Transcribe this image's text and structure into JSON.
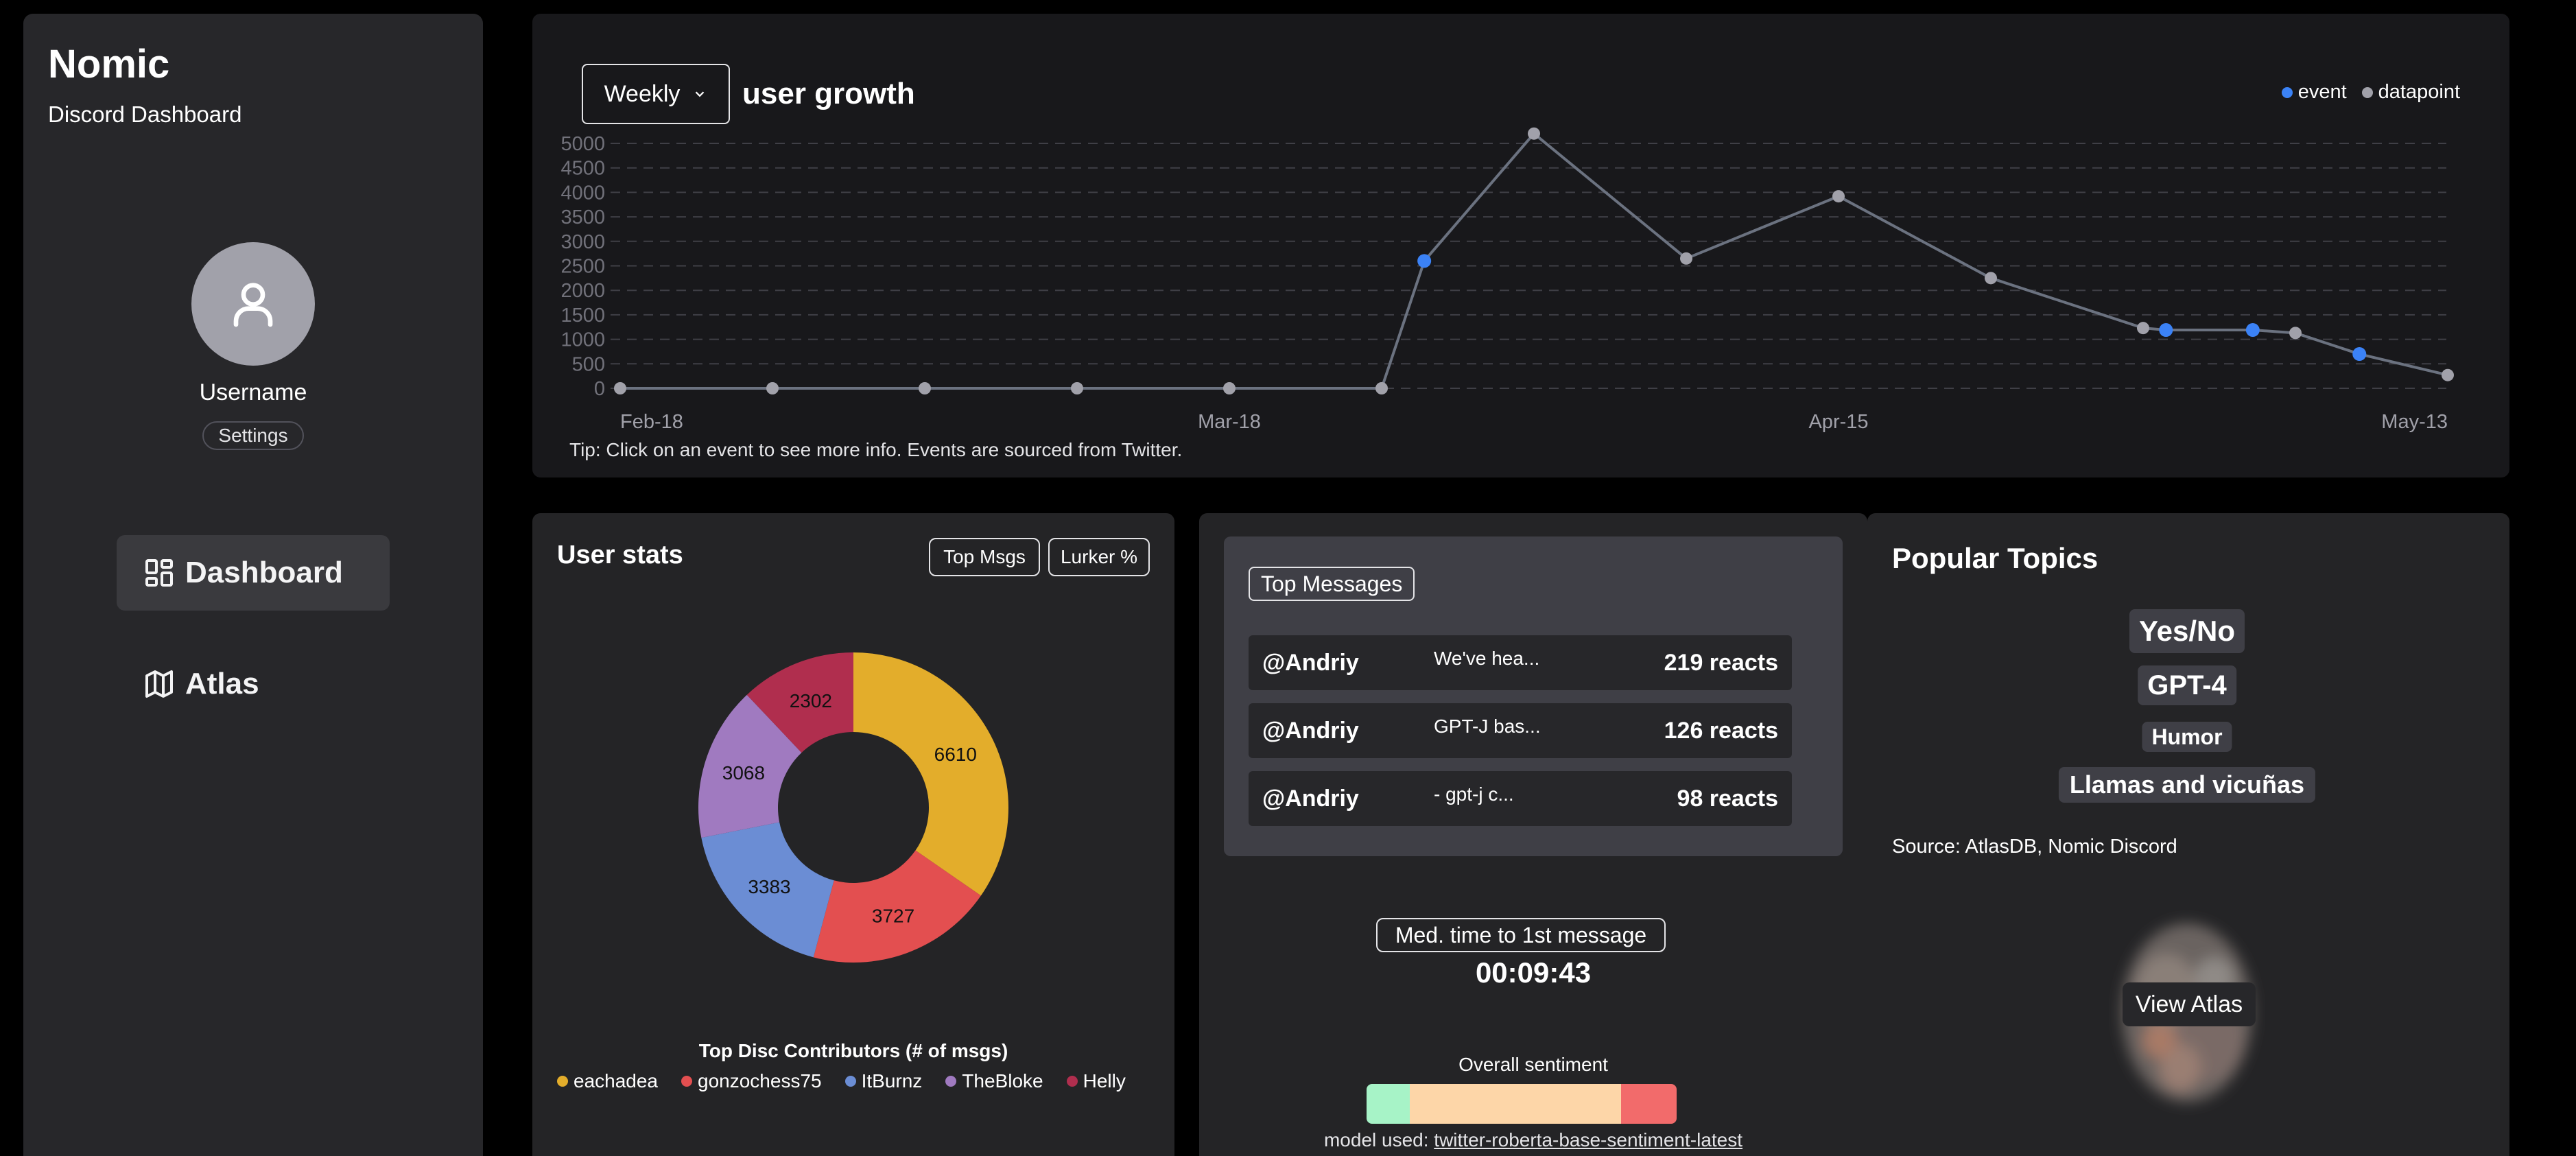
{
  "sidebar": {
    "brand_title": "Nomic",
    "brand_subtitle": "Discord Dashboard",
    "username": "Username",
    "settings_label": "Settings",
    "nav": {
      "dashboard": "Dashboard",
      "atlas": "Atlas"
    }
  },
  "growth": {
    "period": "Weekly",
    "title": "user growth",
    "legend": {
      "event": "event",
      "datapoint": "datapoint"
    },
    "tip": "Tip: Click on an event to see more info. Events are sourced from Twitter."
  },
  "chart_data": {
    "type": "line",
    "title": "user growth",
    "xlabel": "",
    "ylabel": "",
    "ylim": [
      0,
      5000
    ],
    "y_ticks": [
      0,
      500,
      1000,
      1500,
      2000,
      2500,
      3000,
      3500,
      4000,
      4500,
      5000
    ],
    "x_tick_labels": [
      "Feb-18",
      "Mar-18",
      "Apr-15",
      "May-13"
    ],
    "points": [
      {
        "i": 0,
        "y": 0,
        "kind": "datapoint"
      },
      {
        "i": 1,
        "y": 0,
        "kind": "datapoint"
      },
      {
        "i": 2,
        "y": 0,
        "kind": "datapoint"
      },
      {
        "i": 3,
        "y": 0,
        "kind": "datapoint"
      },
      {
        "i": 4,
        "y": 0,
        "kind": "datapoint"
      },
      {
        "i": 5,
        "y": 0,
        "kind": "datapoint"
      },
      {
        "i": 5.28,
        "y": 2600,
        "kind": "event"
      },
      {
        "i": 6,
        "y": 5200,
        "kind": "datapoint"
      },
      {
        "i": 7,
        "y": 2650,
        "kind": "datapoint"
      },
      {
        "i": 8,
        "y": 3920,
        "kind": "datapoint"
      },
      {
        "i": 9,
        "y": 2250,
        "kind": "datapoint"
      },
      {
        "i": 10,
        "y": 1230,
        "kind": "datapoint"
      },
      {
        "i": 10.15,
        "y": 1190,
        "kind": "event"
      },
      {
        "i": 10.72,
        "y": 1190,
        "kind": "event"
      },
      {
        "i": 11,
        "y": 1130,
        "kind": "datapoint"
      },
      {
        "i": 11.42,
        "y": 700,
        "kind": "event"
      },
      {
        "i": 12,
        "y": 270,
        "kind": "datapoint"
      }
    ],
    "colors": {
      "line": "#6b7280",
      "datapoint": "#a1a1aa",
      "event": "#3b82f6"
    }
  },
  "stats": {
    "title": "User stats",
    "btn_top_msgs": "Top Msgs",
    "btn_lurker": "Lurker %",
    "donut": {
      "type": "pie",
      "title": "Top Disc Contributors (# of msgs)",
      "slices": [
        {
          "name": "eachadea",
          "value": 6610,
          "color": "#e3ad2b"
        },
        {
          "name": "gonzochess75",
          "value": 3727,
          "color": "#e34f50"
        },
        {
          "name": "ItBurnz",
          "value": 3383,
          "color": "#6b8dd4"
        },
        {
          "name": "TheBloke",
          "value": 3068,
          "color": "#a07ac0"
        },
        {
          "name": "Helly",
          "value": 2302,
          "color": "#b02e4e"
        }
      ]
    }
  },
  "messages": {
    "title": "Top Messages",
    "rows": [
      {
        "user": "@Andriy",
        "text": "We've hea...",
        "reacts": "219 reacts"
      },
      {
        "user": "@Andriy",
        "text": "GPT-J bas...",
        "reacts": "126 reacts"
      },
      {
        "user": "@Andriy",
        "text": " - gpt-j c...",
        "reacts": "98 reacts"
      }
    ],
    "med_label": "Med. time to 1st message",
    "med_value": "00:09:43",
    "sentiment_label": "Overall sentiment",
    "sentiment": [
      {
        "name": "positive",
        "value": 14,
        "color": "#a7f3c7"
      },
      {
        "name": "neutral",
        "value": 68,
        "color": "#fdd6a8"
      },
      {
        "name": "negative",
        "value": 18,
        "color": "#f26b6b"
      }
    ],
    "model_prefix": "model used: ",
    "model_name": "twitter-roberta-base-sentiment-latest"
  },
  "topics": {
    "title": "Popular Topics",
    "items": [
      "Yes/No",
      "GPT-4",
      "Humor",
      "Llamas and vicuñas"
    ],
    "source": "Source: AtlasDB, Nomic Discord",
    "view_atlas": "View Atlas"
  }
}
